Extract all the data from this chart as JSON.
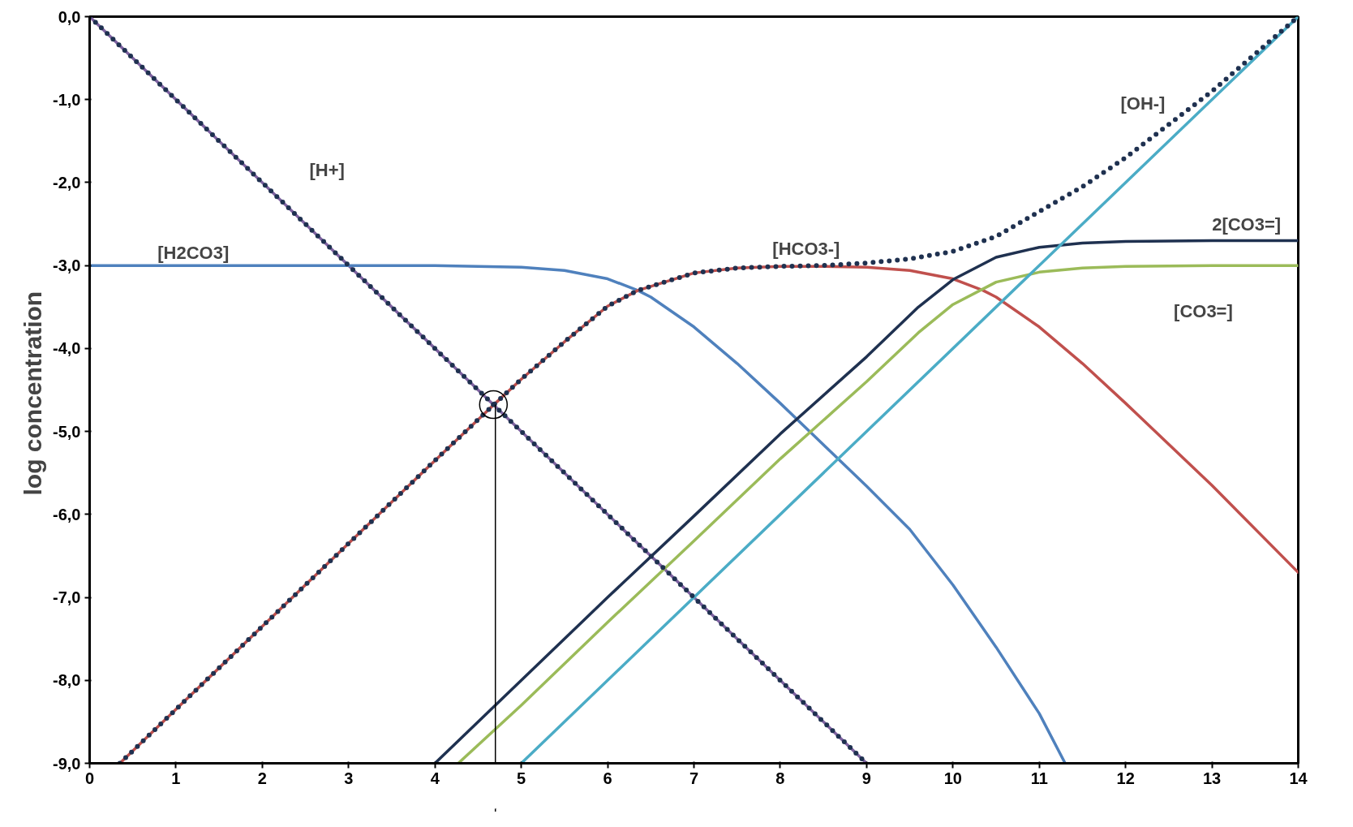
{
  "chart_data": {
    "type": "line",
    "ylabel": "log  concentration",
    "xlim": [
      0,
      14
    ],
    "ylim": [
      -9,
      0
    ],
    "xticks": [
      0,
      1,
      2,
      3,
      4,
      5,
      6,
      7,
      8,
      9,
      10,
      11,
      12,
      13,
      14
    ],
    "yticks": [
      {
        "value": 0,
        "label": "0,0"
      },
      {
        "value": -1,
        "label": "-1,0"
      },
      {
        "value": -2,
        "label": "-2,0"
      },
      {
        "value": -3,
        "label": "-3,0"
      },
      {
        "value": -4,
        "label": "-4,0"
      },
      {
        "value": -5,
        "label": "-5,0"
      },
      {
        "value": -6,
        "label": "-6,0"
      },
      {
        "value": -7,
        "label": "-7,0"
      },
      {
        "value": -8,
        "label": "-8,0"
      },
      {
        "value": -9,
        "label": "-9,0"
      }
    ],
    "grid": false,
    "legend": false,
    "line_style": "solid",
    "marker": "none",
    "series": [
      {
        "name": "[H+]",
        "color": "#8064a2",
        "x": [
          0,
          9
        ],
        "values": [
          0,
          -9
        ]
      },
      {
        "name": "[H2CO3]",
        "color": "#4f81bd",
        "x": [
          0,
          3,
          4,
          5,
          5.5,
          6,
          6.35,
          6.5,
          7,
          7.5,
          8,
          8.5,
          9,
          9.5,
          10,
          10.5,
          11,
          11.3
        ],
        "values": [
          -3,
          -3,
          -3.0,
          -3.02,
          -3.06,
          -3.16,
          -3.3,
          -3.38,
          -3.74,
          -4.18,
          -4.66,
          -5.16,
          -5.66,
          -6.18,
          -6.85,
          -7.6,
          -8.4,
          -9
        ]
      },
      {
        "name": "[HCO3-]",
        "color": "#c0504d",
        "x": [
          0.35,
          1,
          2,
          3,
          4,
          4.7,
          5,
          5.5,
          6,
          6.35,
          7,
          7.5,
          8,
          8.5,
          9,
          9.5,
          10,
          10.35,
          10.5,
          11,
          11.5,
          12,
          13,
          14
        ],
        "values": [
          -9,
          -8.35,
          -7.35,
          -6.35,
          -5.35,
          -4.66,
          -4.37,
          -3.92,
          -3.49,
          -3.3,
          -3.09,
          -3.03,
          -3.01,
          -3.01,
          -3.02,
          -3.06,
          -3.16,
          -3.3,
          -3.38,
          -3.74,
          -4.18,
          -4.66,
          -5.65,
          -6.7
        ]
      },
      {
        "name": "2[CO3=]",
        "color": "#1f3150",
        "x": [
          4.0,
          5,
          6,
          7,
          8,
          9,
          9.6,
          10,
          10.5,
          11,
          11.5,
          12,
          13,
          14
        ],
        "values": [
          -9,
          -8.0,
          -7.0,
          -6.02,
          -5.03,
          -4.1,
          -3.5,
          -3.17,
          -2.9,
          -2.78,
          -2.73,
          -2.71,
          -2.7,
          -2.7
        ]
      },
      {
        "name": "[CO3=]",
        "color": "#9bbb59",
        "x": [
          4.27,
          5,
          6,
          7,
          8,
          9,
          9.6,
          10,
          10.5,
          11,
          11.5,
          12,
          13,
          14
        ],
        "values": [
          -9,
          -8.3,
          -7.3,
          -6.32,
          -5.33,
          -4.4,
          -3.81,
          -3.47,
          -3.2,
          -3.08,
          -3.03,
          -3.01,
          -3.0,
          -3.0
        ]
      },
      {
        "name": "[OH-]",
        "color": "#4bacc6",
        "x": [
          5,
          14
        ],
        "values": [
          -9,
          0
        ]
      },
      {
        "color": "#1f3150",
        "line_style": "dotted",
        "x": [
          0,
          9
        ],
        "values": [
          0,
          -9
        ]
      },
      {
        "color": "#1f3150",
        "line_style": "dotted",
        "x": [
          0.35,
          1,
          2,
          3,
          4,
          4.7,
          5,
          5.5,
          6,
          6.35,
          7,
          7.5,
          8,
          8.5,
          9,
          9.5,
          10,
          10.5,
          11,
          11.5,
          12,
          12.5,
          13,
          13.5,
          14
        ],
        "values": [
          -9,
          -8.35,
          -7.35,
          -6.35,
          -5.35,
          -4.66,
          -4.37,
          -3.92,
          -3.49,
          -3.3,
          -3.09,
          -3.03,
          -3.01,
          -3.0,
          -2.97,
          -2.92,
          -2.83,
          -2.65,
          -2.35,
          -2.05,
          -1.7,
          -1.3,
          -0.9,
          -0.45,
          0
        ]
      }
    ],
    "ref_lines": [
      {
        "axis": "x",
        "value": 4.7,
        "color": "#000000"
      }
    ]
  }
}
